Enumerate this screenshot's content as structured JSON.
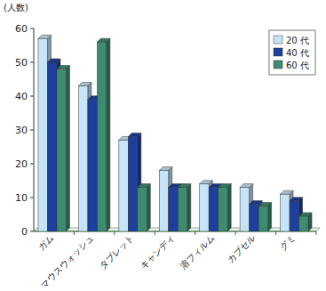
{
  "chart_data": {
    "type": "bar",
    "y_label": "(人数)",
    "categories": [
      "ガム",
      "マウスウォッシュ",
      "タブレット",
      "キャンディ",
      "溶フィルム",
      "カプセル",
      "グミ"
    ],
    "series": [
      {
        "name": "20 代",
        "color": "#c6e4f7",
        "values": [
          57,
          43,
          27,
          18,
          14,
          13,
          11
        ]
      },
      {
        "name": "40 代",
        "color": "#1d3f9e",
        "values": [
          50,
          39,
          28,
          13,
          13,
          8,
          9
        ]
      },
      {
        "name": "60 代",
        "color": "#3d8c70",
        "values": [
          48,
          56,
          13,
          13,
          13,
          7.5,
          4.5
        ]
      }
    ],
    "ylim": [
      0,
      60
    ],
    "yticks": [
      0,
      10,
      20,
      30,
      40,
      50,
      60
    ],
    "grid": false,
    "legend": "upper right"
  }
}
